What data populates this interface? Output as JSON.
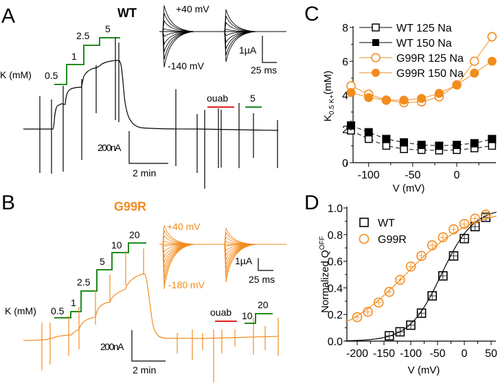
{
  "colors": {
    "wt": "#000000",
    "g99r": "#f28c1e",
    "k_steps": "#1f8a1f",
    "ouabain": "#e02020",
    "axis": "#000000"
  },
  "panelA": {
    "letter": "A",
    "title": "WT",
    "k_label": "K (mM)",
    "k_steps": [
      "0.5",
      "1",
      "2.5",
      "5"
    ],
    "ouab_label": "ouab",
    "post_ouab_k": [
      "5"
    ],
    "inset": {
      "top_label": "+40 mV",
      "bottom_label": "-140 mV",
      "scale_y": "1µA",
      "scale_x": "25 ms"
    },
    "scale_y": "200nA",
    "scale_x": "2 min"
  },
  "panelB": {
    "letter": "B",
    "title": "G99R",
    "k_label": "K (mM)",
    "k_steps": [
      "0.5",
      "1",
      "2.5",
      "5",
      "10",
      "20"
    ],
    "ouab_label": "ouab",
    "post_ouab_k": [
      "10",
      "20"
    ],
    "inset": {
      "top_label": "+40 mV",
      "bottom_label": "-180 mV",
      "scale_y": "1µA",
      "scale_x": "25 ms"
    },
    "scale_y": "200nA",
    "scale_x": "2 min"
  },
  "chart_data": [
    {
      "panel": "C",
      "type": "line",
      "xlabel": "V (mV)",
      "ylabel": "K0.5 K+ (mM)",
      "ylabel_main": "K",
      "ylabel_sub": "0.5 K+",
      "ylabel_unit": "(mM)",
      "xlim": [
        -125,
        45
      ],
      "ylim": [
        0,
        8
      ],
      "xticks": [
        -100,
        -50,
        0
      ],
      "yticks": [
        0,
        2,
        4,
        6,
        8
      ],
      "legend": "top-left",
      "x": [
        -120,
        -100,
        -80,
        -60,
        -40,
        -20,
        0,
        20,
        40
      ],
      "series": [
        {
          "name": "WT 125 Na",
          "color": "#000000",
          "marker": "square-open",
          "values": [
            1.9,
            1.4,
            1.0,
            0.8,
            0.75,
            0.72,
            0.75,
            0.85,
            1.0
          ],
          "err": [
            0.1,
            0.1,
            0.08,
            0.06,
            0.06,
            0.06,
            0.06,
            0.06,
            0.08
          ]
        },
        {
          "name": "WT 150 Na",
          "color": "#000000",
          "marker": "square-filled",
          "values": [
            2.2,
            1.8,
            1.4,
            1.2,
            1.05,
            1.0,
            1.05,
            1.15,
            1.4
          ],
          "err": [
            0.3,
            0.2,
            0.15,
            0.1,
            0.1,
            0.1,
            0.1,
            0.1,
            0.15
          ]
        },
        {
          "name": "G99R 125 Na",
          "color": "#f28c1e",
          "marker": "circle-open",
          "values": [
            4.55,
            4.05,
            3.7,
            3.55,
            3.6,
            3.9,
            4.6,
            6.0,
            7.45
          ],
          "err": [
            0.1,
            0.1,
            0.1,
            0.1,
            0.1,
            0.1,
            0.1,
            0.15,
            0.3
          ]
        },
        {
          "name": "G99R 150 Na",
          "color": "#f28c1e",
          "marker": "circle-filled",
          "values": [
            4.15,
            3.85,
            3.7,
            3.7,
            3.8,
            4.1,
            4.6,
            5.3,
            6.0
          ],
          "err": [
            0.1,
            0.1,
            0.1,
            0.1,
            0.1,
            0.1,
            0.1,
            0.15,
            0.25
          ]
        }
      ]
    },
    {
      "panel": "D",
      "type": "scatter",
      "xlabel": "V (mV)",
      "ylabel": "Normalized QOFF",
      "ylabel_main": "Normalized Q",
      "ylabel_sub": "OFF",
      "xlim": [
        -225,
        60
      ],
      "ylim": [
        0,
        1.0
      ],
      "xticks": [
        -200,
        -150,
        -100,
        -50,
        0,
        50
      ],
      "yticks": [
        0.0,
        0.2,
        0.4,
        0.6,
        0.8,
        1.0
      ],
      "ytick_labels": [
        "0.0",
        "0.2",
        "0.4",
        "0.6",
        "0.8",
        "1.0"
      ],
      "legend": "top-left",
      "series": [
        {
          "name": "WT",
          "color": "#000000",
          "marker": "square-open",
          "x": [
            -140,
            -120,
            -100,
            -80,
            -60,
            -40,
            -20,
            0,
            20,
            40
          ],
          "values": [
            0.04,
            0.07,
            0.12,
            0.21,
            0.34,
            0.49,
            0.64,
            0.77,
            0.86,
            0.93
          ],
          "fit": {
            "type": "boltzmann",
            "v_half": -43,
            "slope": 30
          }
        },
        {
          "name": "G99R",
          "color": "#f28c1e",
          "marker": "circle-open",
          "x": [
            -200,
            -180,
            -160,
            -140,
            -120,
            -100,
            -80,
            -60,
            -40,
            -20,
            0,
            20,
            40
          ],
          "values": [
            0.18,
            0.22,
            0.29,
            0.37,
            0.46,
            0.56,
            0.64,
            0.72,
            0.78,
            0.84,
            0.88,
            0.92,
            0.95
          ],
          "fit": {
            "type": "boltzmann",
            "v_half": -110,
            "slope": 62
          }
        }
      ]
    }
  ]
}
